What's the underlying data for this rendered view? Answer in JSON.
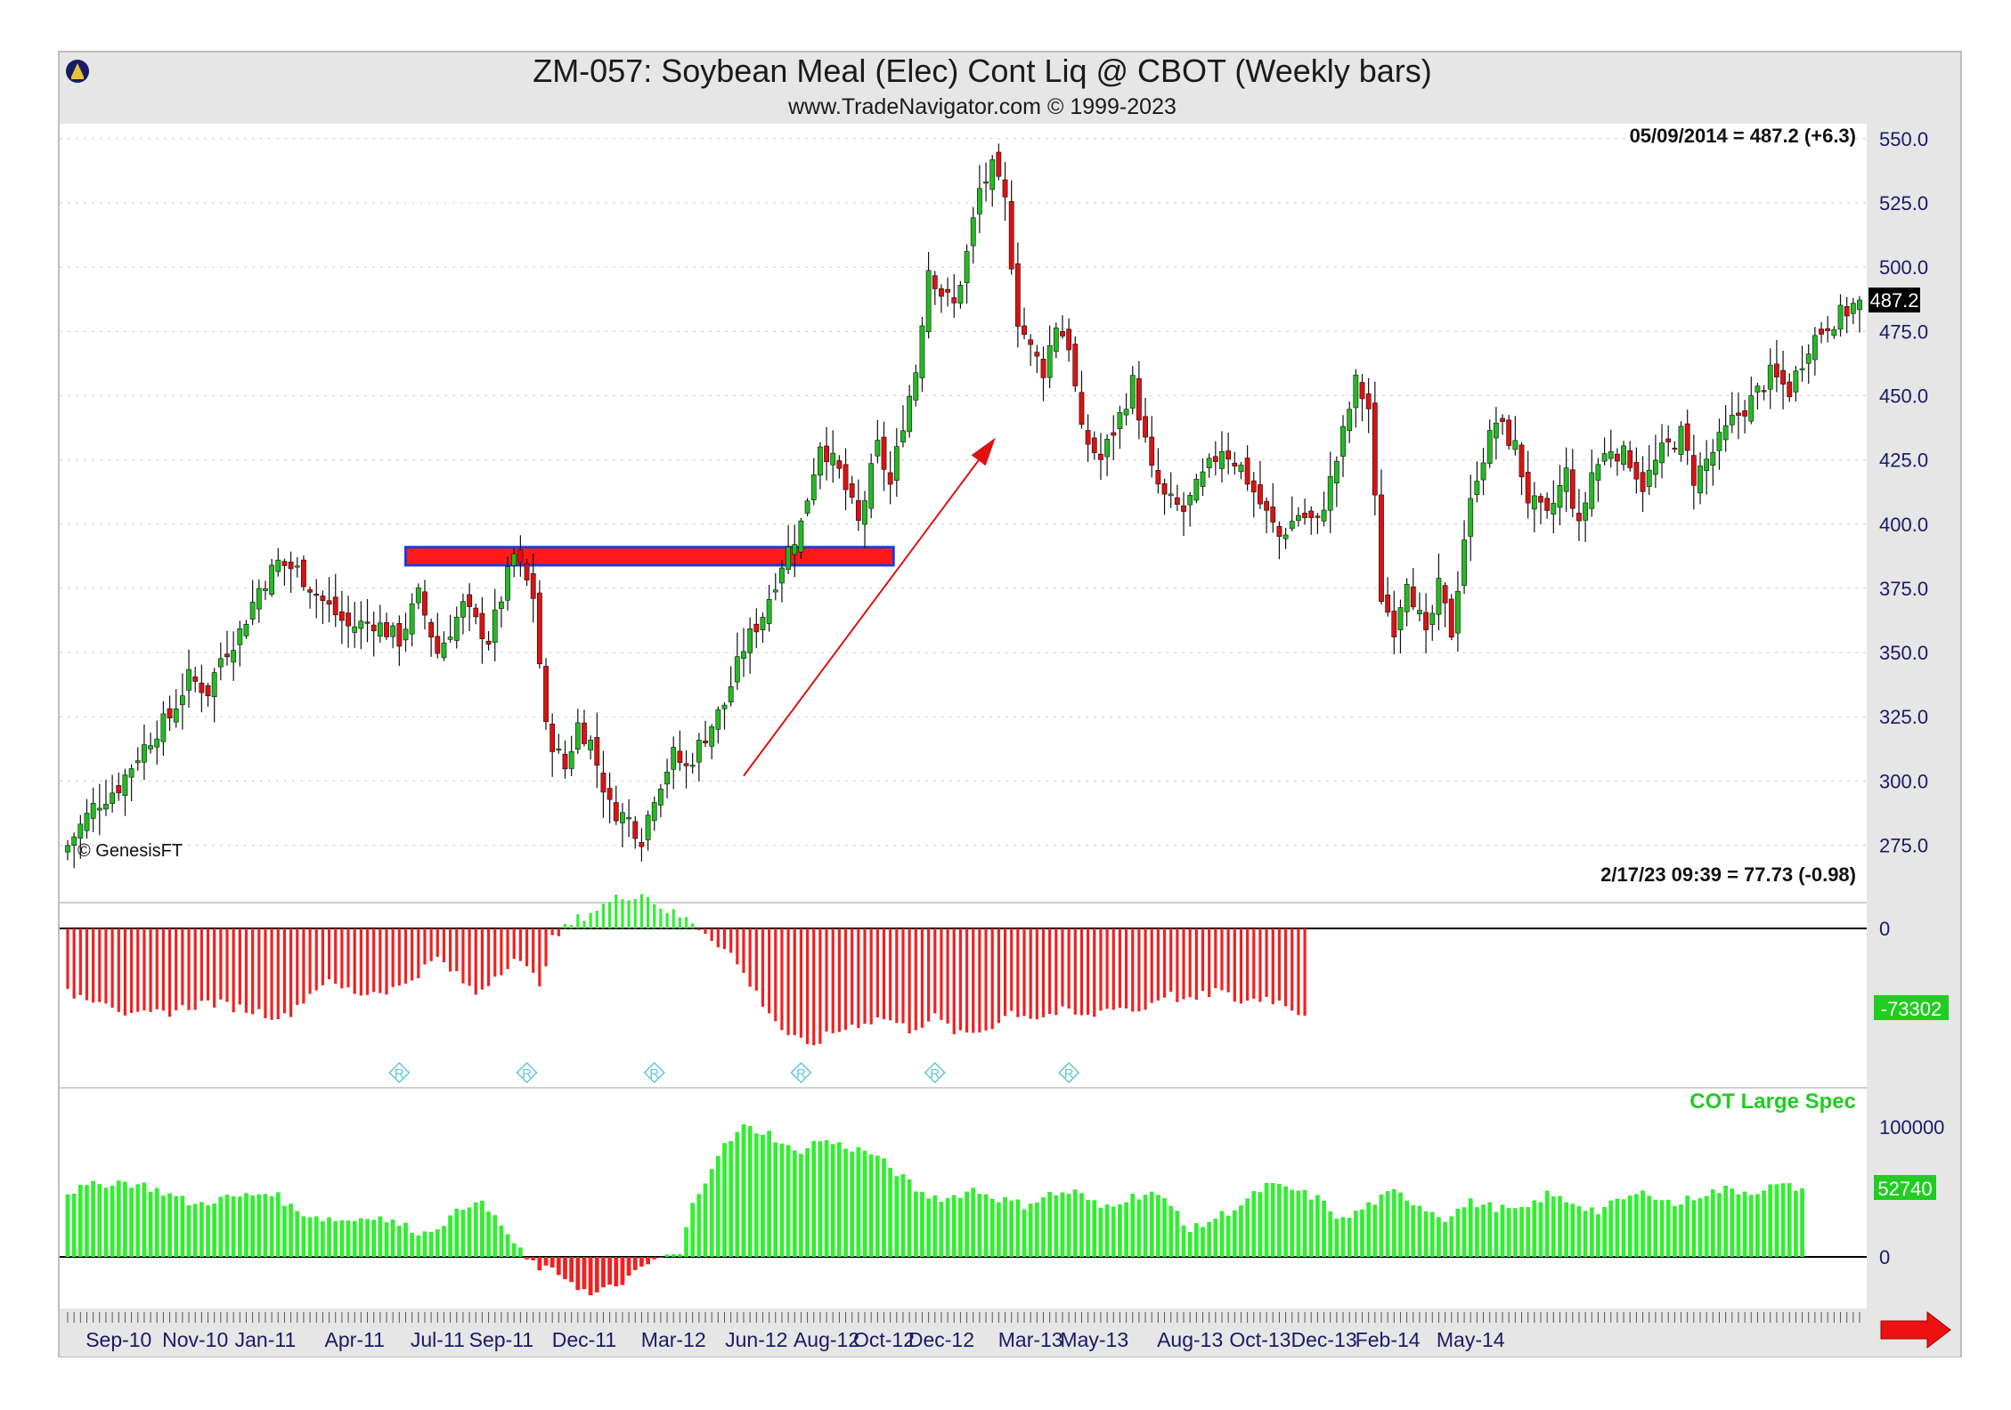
{
  "header": {
    "title": "ZM-057:  Soybean Meal (Elec) Cont Liq @ CBOT  (Weekly bars)",
    "subtitle": "www.TradeNavigator.com © 1999-2023"
  },
  "price_pane": {
    "readout": "05/09/2014 = 487.2 (+6.3)",
    "last_price_tag": "487.2",
    "watermark": "© GenesisFT",
    "y_ticks": [
      "550.0",
      "525.0",
      "500.0",
      "475.0",
      "450.0",
      "425.0",
      "400.0",
      "375.0",
      "350.0",
      "325.0",
      "300.0",
      "275.0"
    ]
  },
  "indicator_pane": {
    "readout": "2/17/23 09:39 = 77.73 (-0.98)",
    "zero_label": "0",
    "last_value_tag": "-73302"
  },
  "cot_pane": {
    "legend": "COT Large Spec",
    "tick_100000": "100000",
    "zero_label": "0",
    "last_value_tag": "52740"
  },
  "x_labels": [
    "Sep-10",
    "Nov-10",
    "Jan-11",
    "Apr-11",
    "Jul-11",
    "Sep-11",
    "Dec-11",
    "Mar-12",
    "Jun-12",
    "Aug-12",
    "Oct-12",
    "Dec-12",
    "Mar-13",
    "May-13",
    "Aug-13",
    "Oct-13",
    "Dec-13",
    "Feb-14",
    "May-14"
  ],
  "colors": {
    "up": "#22bb22",
    "down": "#dd1111",
    "bar_green": "#33ee33",
    "bar_red": "#ee2222",
    "axis_text": "#1a1a66",
    "resistance_fill": "#ff1a1a",
    "resistance_border": "#1f3bd6",
    "arrow": "#dd1111",
    "header_bg": "#e6e6e6"
  },
  "chart_data": [
    {
      "type": "candlestick",
      "title": "ZM-057:  Soybean Meal (Elec) Cont Liq @ CBOT  (Weekly bars)",
      "x_labels": [
        "Sep-10",
        "Nov-10",
        "Jan-11",
        "Apr-11",
        "Jul-11",
        "Sep-11",
        "Dec-11",
        "Mar-12",
        "Jun-12",
        "Aug-12",
        "Oct-12",
        "Dec-12",
        "Mar-13",
        "May-13",
        "Aug-13",
        "Oct-13",
        "Dec-13",
        "Feb-14",
        "May-14"
      ],
      "ylim": [
        270,
        552
      ],
      "anchors": [
        [
          0,
          275
        ],
        [
          4,
          290
        ],
        [
          8,
          298
        ],
        [
          11,
          310
        ],
        [
          14,
          320
        ],
        [
          16,
          325
        ],
        [
          19,
          340
        ],
        [
          22,
          335
        ],
        [
          24,
          348
        ],
        [
          27,
          358
        ],
        [
          30,
          375
        ],
        [
          33,
          385
        ],
        [
          36,
          382
        ],
        [
          40,
          370
        ],
        [
          44,
          360
        ],
        [
          48,
          362
        ],
        [
          52,
          355
        ],
        [
          55,
          372
        ],
        [
          58,
          350
        ],
        [
          62,
          368
        ],
        [
          66,
          355
        ],
        [
          70,
          388
        ],
        [
          73,
          372
        ],
        [
          75,
          320
        ],
        [
          78,
          305
        ],
        [
          80,
          322
        ],
        [
          82,
          315
        ],
        [
          85,
          290
        ],
        [
          88,
          285
        ],
        [
          90,
          278
        ],
        [
          92,
          295
        ],
        [
          95,
          310
        ],
        [
          97,
          305
        ],
        [
          100,
          318
        ],
        [
          103,
          330
        ],
        [
          106,
          352
        ],
        [
          109,
          365
        ],
        [
          112,
          385
        ],
        [
          115,
          400
        ],
        [
          118,
          432
        ],
        [
          121,
          420
        ],
        [
          124,
          400
        ],
        [
          127,
          430
        ],
        [
          129,
          415
        ],
        [
          131,
          440
        ],
        [
          133,
          460
        ],
        [
          135,
          500
        ],
        [
          137,
          490
        ],
        [
          139,
          485
        ],
        [
          141,
          505
        ],
        [
          143,
          530
        ],
        [
          145,
          538
        ],
        [
          147,
          525
        ],
        [
          149,
          480
        ],
        [
          151,
          468
        ],
        [
          153,
          460
        ],
        [
          155,
          478
        ],
        [
          157,
          470
        ],
        [
          159,
          435
        ],
        [
          162,
          425
        ],
        [
          165,
          442
        ],
        [
          167,
          455
        ],
        [
          170,
          420
        ],
        [
          172,
          410
        ],
        [
          175,
          405
        ],
        [
          178,
          418
        ],
        [
          181,
          430
        ],
        [
          184,
          422
        ],
        [
          187,
          408
        ],
        [
          190,
          395
        ],
        [
          193,
          404
        ],
        [
          196,
          400
        ],
        [
          199,
          425
        ],
        [
          202,
          455
        ],
        [
          204,
          445
        ],
        [
          206,
          372
        ],
        [
          208,
          360
        ],
        [
          210,
          380
        ],
        [
          213,
          355
        ],
        [
          215,
          375
        ],
        [
          217,
          358
        ],
        [
          219,
          395
        ],
        [
          221,
          420
        ],
        [
          224,
          440
        ],
        [
          227,
          430
        ],
        [
          229,
          410
        ],
        [
          232,
          402
        ],
        [
          235,
          420
        ],
        [
          237,
          398
        ],
        [
          239,
          420
        ],
        [
          242,
          430
        ],
        [
          245,
          425
        ],
        [
          247,
          415
        ],
        [
          250,
          428
        ],
        [
          253,
          435
        ],
        [
          255,
          418
        ],
        [
          258,
          428
        ],
        [
          261,
          440
        ],
        [
          264,
          448
        ],
        [
          267,
          458
        ],
        [
          270,
          452
        ],
        [
          273,
          470
        ],
        [
          276,
          478
        ],
        [
          279,
          483
        ],
        [
          281,
          487.2
        ]
      ],
      "last": {
        "date": "05/09/2014",
        "value": 487.2,
        "change": 6.3
      },
      "annotations": {
        "resistance_zone": {
          "from_label": "Jan-11",
          "to_label": "Jun-12",
          "low": 384,
          "high": 391
        },
        "arrow": {
          "from_value": 302,
          "to_value": 432
        }
      },
      "y_ticks": [
        550,
        525,
        500,
        475,
        450,
        425,
        400,
        375,
        350,
        325,
        300,
        275
      ]
    },
    {
      "type": "bar",
      "name": "",
      "readout": "2/17/23 09:39 = 77.73 (-0.98)",
      "ylim": [
        -110000,
        35000
      ],
      "anchors": [
        [
          0,
          -55000
        ],
        [
          6,
          -60000
        ],
        [
          10,
          -75000
        ],
        [
          16,
          -70000
        ],
        [
          22,
          -62000
        ],
        [
          28,
          -68000
        ],
        [
          34,
          -75000
        ],
        [
          40,
          -45000
        ],
        [
          46,
          -55000
        ],
        [
          52,
          -50000
        ],
        [
          58,
          -25000
        ],
        [
          64,
          -55000
        ],
        [
          70,
          -25000
        ],
        [
          74,
          -45000
        ],
        [
          76,
          -10000
        ],
        [
          78,
          0
        ],
        [
          80,
          8000
        ],
        [
          86,
          25000
        ],
        [
          90,
          30000
        ],
        [
          94,
          15000
        ],
        [
          98,
          5000
        ],
        [
          100,
          -3000
        ],
        [
          104,
          -22000
        ],
        [
          108,
          -55000
        ],
        [
          112,
          -85000
        ],
        [
          116,
          -100000
        ],
        [
          120,
          -88000
        ],
        [
          124,
          -80000
        ],
        [
          128,
          -75000
        ],
        [
          132,
          -85000
        ],
        [
          136,
          -75000
        ],
        [
          140,
          -90000
        ],
        [
          144,
          -85000
        ],
        [
          148,
          -70000
        ],
        [
          152,
          -75000
        ],
        [
          156,
          -70000
        ],
        [
          160,
          -75000
        ],
        [
          164,
          -65000
        ],
        [
          168,
          -70000
        ],
        [
          172,
          -55000
        ],
        [
          176,
          -62000
        ],
        [
          180,
          -52000
        ],
        [
          184,
          -62000
        ],
        [
          188,
          -58000
        ],
        [
          192,
          -66000
        ],
        [
          194,
          -73302
        ]
      ],
      "last_value": -73302,
      "marker_labels": [
        "R",
        "R",
        "R",
        "R",
        "R",
        "R"
      ]
    },
    {
      "type": "bar",
      "name": "COT Large Spec",
      "ylim": [
        -40000,
        120000
      ],
      "anchors": [
        [
          0,
          50000
        ],
        [
          4,
          55000
        ],
        [
          8,
          58000
        ],
        [
          12,
          55000
        ],
        [
          16,
          48000
        ],
        [
          20,
          40000
        ],
        [
          24,
          45000
        ],
        [
          28,
          47000
        ],
        [
          32,
          50000
        ],
        [
          36,
          35000
        ],
        [
          40,
          30000
        ],
        [
          44,
          28000
        ],
        [
          48,
          32000
        ],
        [
          52,
          25000
        ],
        [
          56,
          18000
        ],
        [
          60,
          30000
        ],
        [
          64,
          45000
        ],
        [
          68,
          25000
        ],
        [
          70,
          10000
        ],
        [
          72,
          -2000
        ],
        [
          74,
          -8000
        ],
        [
          78,
          -15000
        ],
        [
          82,
          -30000
        ],
        [
          86,
          -22000
        ],
        [
          90,
          -10000
        ],
        [
          92,
          -2000
        ],
        [
          94,
          0
        ],
        [
          96,
          2000
        ],
        [
          98,
          40000
        ],
        [
          102,
          80000
        ],
        [
          106,
          100000
        ],
        [
          110,
          95000
        ],
        [
          114,
          80000
        ],
        [
          118,
          90000
        ],
        [
          122,
          85000
        ],
        [
          126,
          80000
        ],
        [
          130,
          65000
        ],
        [
          134,
          48000
        ],
        [
          138,
          45000
        ],
        [
          142,
          52000
        ],
        [
          146,
          45000
        ],
        [
          150,
          40000
        ],
        [
          154,
          48000
        ],
        [
          158,
          50000
        ],
        [
          162,
          38000
        ],
        [
          166,
          45000
        ],
        [
          170,
          50000
        ],
        [
          174,
          35000
        ],
        [
          176,
          20000
        ],
        [
          180,
          30000
        ],
        [
          184,
          40000
        ],
        [
          188,
          55000
        ],
        [
          192,
          52000
        ],
        [
          196,
          45000
        ],
        [
          200,
          28000
        ],
        [
          204,
          40000
        ],
        [
          208,
          50000
        ],
        [
          212,
          40000
        ],
        [
          216,
          30000
        ],
        [
          220,
          42000
        ],
        [
          224,
          38000
        ],
        [
          228,
          35000
        ],
        [
          232,
          48000
        ],
        [
          236,
          42000
        ],
        [
          240,
          35000
        ],
        [
          244,
          45000
        ],
        [
          248,
          50000
        ],
        [
          252,
          40000
        ],
        [
          256,
          48000
        ],
        [
          260,
          52000
        ],
        [
          264,
          50000
        ],
        [
          268,
          55000
        ],
        [
          272,
          52740
        ]
      ],
      "last_value": 52740,
      "y_ticks": [
        100000,
        0
      ]
    }
  ]
}
